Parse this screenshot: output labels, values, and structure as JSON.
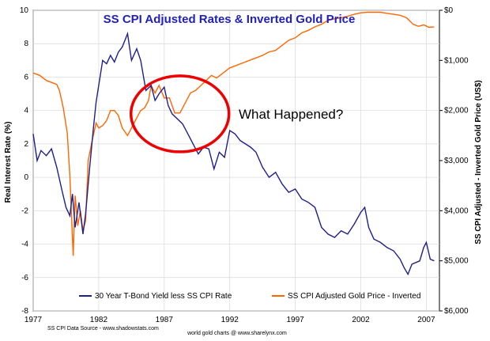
{
  "chart_data": {
    "type": "line",
    "title": "SS CPI Adjusted Rates & Inverted Gold Price",
    "ylabel": "Real Interest Rate (%)",
    "y2label": "SS CPI Adjusted - Inverted Gold Price (US$)",
    "xlim": [
      1977,
      2008
    ],
    "ylim": [
      -8,
      10
    ],
    "y2lim": [
      6000,
      0
    ],
    "x_ticks": [
      1977,
      1982,
      1987,
      1992,
      1997,
      2002,
      2007
    ],
    "y_ticks": [
      10,
      8,
      6,
      4,
      2,
      0,
      -2,
      -4,
      -6,
      -8
    ],
    "y2_ticks": [
      "$0",
      "$1,000",
      "$2,000",
      "$3,000",
      "$4,000",
      "$5,000",
      "$6,000"
    ],
    "y2_tick_values": [
      0,
      1000,
      2000,
      3000,
      4000,
      5000,
      6000
    ],
    "annotation": {
      "text": "What Happened?",
      "circle_center": [
        1988.2,
        3.8
      ]
    },
    "footer_left": "SS CPI Data Source - www.shadowstats.com",
    "footer_center": "world gold charts @ www.sharelynx.com",
    "colors": {
      "rate": "#1f1f8c",
      "gold": "#ff6600",
      "circle": "#ee0000",
      "title": "#1f1fbf"
    },
    "series": [
      {
        "name": "30 Year T-Bond Yield less SS CPI Rate",
        "axis": "left",
        "x": [
          1977.0,
          1977.3,
          1977.6,
          1978.0,
          1978.4,
          1978.8,
          1979.2,
          1979.5,
          1979.8,
          1980.0,
          1980.2,
          1980.5,
          1980.8,
          1981.0,
          1981.3,
          1981.6,
          1981.8,
          1982.0,
          1982.3,
          1982.6,
          1982.9,
          1983.2,
          1983.5,
          1983.8,
          1984.2,
          1984.5,
          1984.9,
          1985.2,
          1985.6,
          1986.0,
          1986.3,
          1986.6,
          1987.0,
          1987.3,
          1987.6,
          1988.0,
          1988.4,
          1988.8,
          1989.2,
          1989.6,
          1990.0,
          1990.4,
          1990.8,
          1991.2,
          1991.6,
          1992.0,
          1992.4,
          1992.8,
          1993.2,
          1993.6,
          1994.0,
          1994.5,
          1995.0,
          1995.5,
          1996.0,
          1996.5,
          1997.0,
          1997.5,
          1998.0,
          1998.5,
          1999.0,
          1999.5,
          2000.0,
          2000.5,
          2001.0,
          2001.5,
          2002.0,
          2002.3,
          2002.6,
          2003.0,
          2003.5,
          2004.0,
          2004.5,
          2005.0,
          2005.3,
          2005.6,
          2005.9,
          2006.2,
          2006.5,
          2006.8,
          2007.0,
          2007.3,
          2007.6
        ],
        "y": [
          2.6,
          1.0,
          1.6,
          1.3,
          1.7,
          0.6,
          -0.8,
          -1.8,
          -2.3,
          -1.0,
          -3.0,
          -1.5,
          -3.4,
          -2.2,
          0.5,
          3.0,
          4.5,
          5.5,
          7.0,
          6.8,
          7.3,
          6.9,
          7.5,
          7.8,
          8.6,
          7.0,
          7.7,
          7.0,
          5.2,
          5.5,
          4.6,
          5.0,
          5.4,
          4.3,
          3.8,
          3.5,
          3.2,
          2.6,
          2.0,
          1.4,
          1.8,
          1.7,
          0.5,
          1.5,
          1.2,
          2.8,
          2.6,
          2.2,
          2.0,
          1.8,
          1.5,
          0.6,
          0.0,
          0.3,
          -0.4,
          -0.9,
          -0.7,
          -1.3,
          -1.5,
          -1.8,
          -3.0,
          -3.4,
          -3.6,
          -3.2,
          -3.4,
          -2.8,
          -2.1,
          -1.8,
          -3.0,
          -3.7,
          -3.9,
          -4.2,
          -4.4,
          -4.9,
          -5.4,
          -5.8,
          -5.2,
          -5.1,
          -5.0,
          -4.2,
          -3.9,
          -4.9,
          -5.0
        ]
      },
      {
        "name": "SS CPI Adjusted Gold Price - Inverted",
        "axis": "right",
        "x": [
          1977.0,
          1977.5,
          1978.0,
          1978.5,
          1978.8,
          1979.0,
          1979.3,
          1979.6,
          1979.8,
          1979.95,
          1980.05,
          1980.2,
          1980.4,
          1980.6,
          1980.8,
          1981.0,
          1981.2,
          1981.5,
          1981.8,
          1982.0,
          1982.3,
          1982.6,
          1982.9,
          1983.2,
          1983.5,
          1983.8,
          1984.2,
          1984.5,
          1984.8,
          1985.2,
          1985.5,
          1985.8,
          1986.0,
          1986.3,
          1986.6,
          1987.0,
          1987.4,
          1987.8,
          1988.2,
          1988.6,
          1989.0,
          1989.4,
          1989.8,
          1990.2,
          1990.6,
          1991.0,
          1991.5,
          1992.0,
          1992.5,
          1993.0,
          1993.5,
          1994.0,
          1994.5,
          1995.0,
          1995.5,
          1996.0,
          1996.5,
          1997.0,
          1997.5,
          1998.0,
          1998.5,
          1999.0,
          1999.5,
          2000.0,
          2000.5,
          2001.0,
          2001.5,
          2002.0,
          2002.5,
          2003.0,
          2003.5,
          2004.0,
          2004.5,
          2005.0,
          2005.5,
          2006.0,
          2006.4,
          2006.8,
          2007.2,
          2007.6
        ],
        "y": [
          1250,
          1300,
          1400,
          1450,
          1480,
          1600,
          1950,
          2450,
          3300,
          4250,
          4900,
          3700,
          4300,
          4000,
          4400,
          4200,
          3000,
          2600,
          2250,
          2350,
          2300,
          2200,
          2000,
          2000,
          2100,
          2350,
          2500,
          2350,
          2200,
          2000,
          1950,
          1800,
          1500,
          1650,
          1500,
          1750,
          1750,
          2050,
          2050,
          1850,
          1650,
          1600,
          1500,
          1400,
          1300,
          1350,
          1250,
          1150,
          1100,
          1050,
          1000,
          950,
          900,
          830,
          800,
          700,
          600,
          550,
          450,
          400,
          330,
          280,
          200,
          170,
          150,
          120,
          80,
          50,
          40,
          40,
          40,
          60,
          80,
          100,
          150,
          280,
          320,
          290,
          340,
          330
        ]
      }
    ]
  }
}
